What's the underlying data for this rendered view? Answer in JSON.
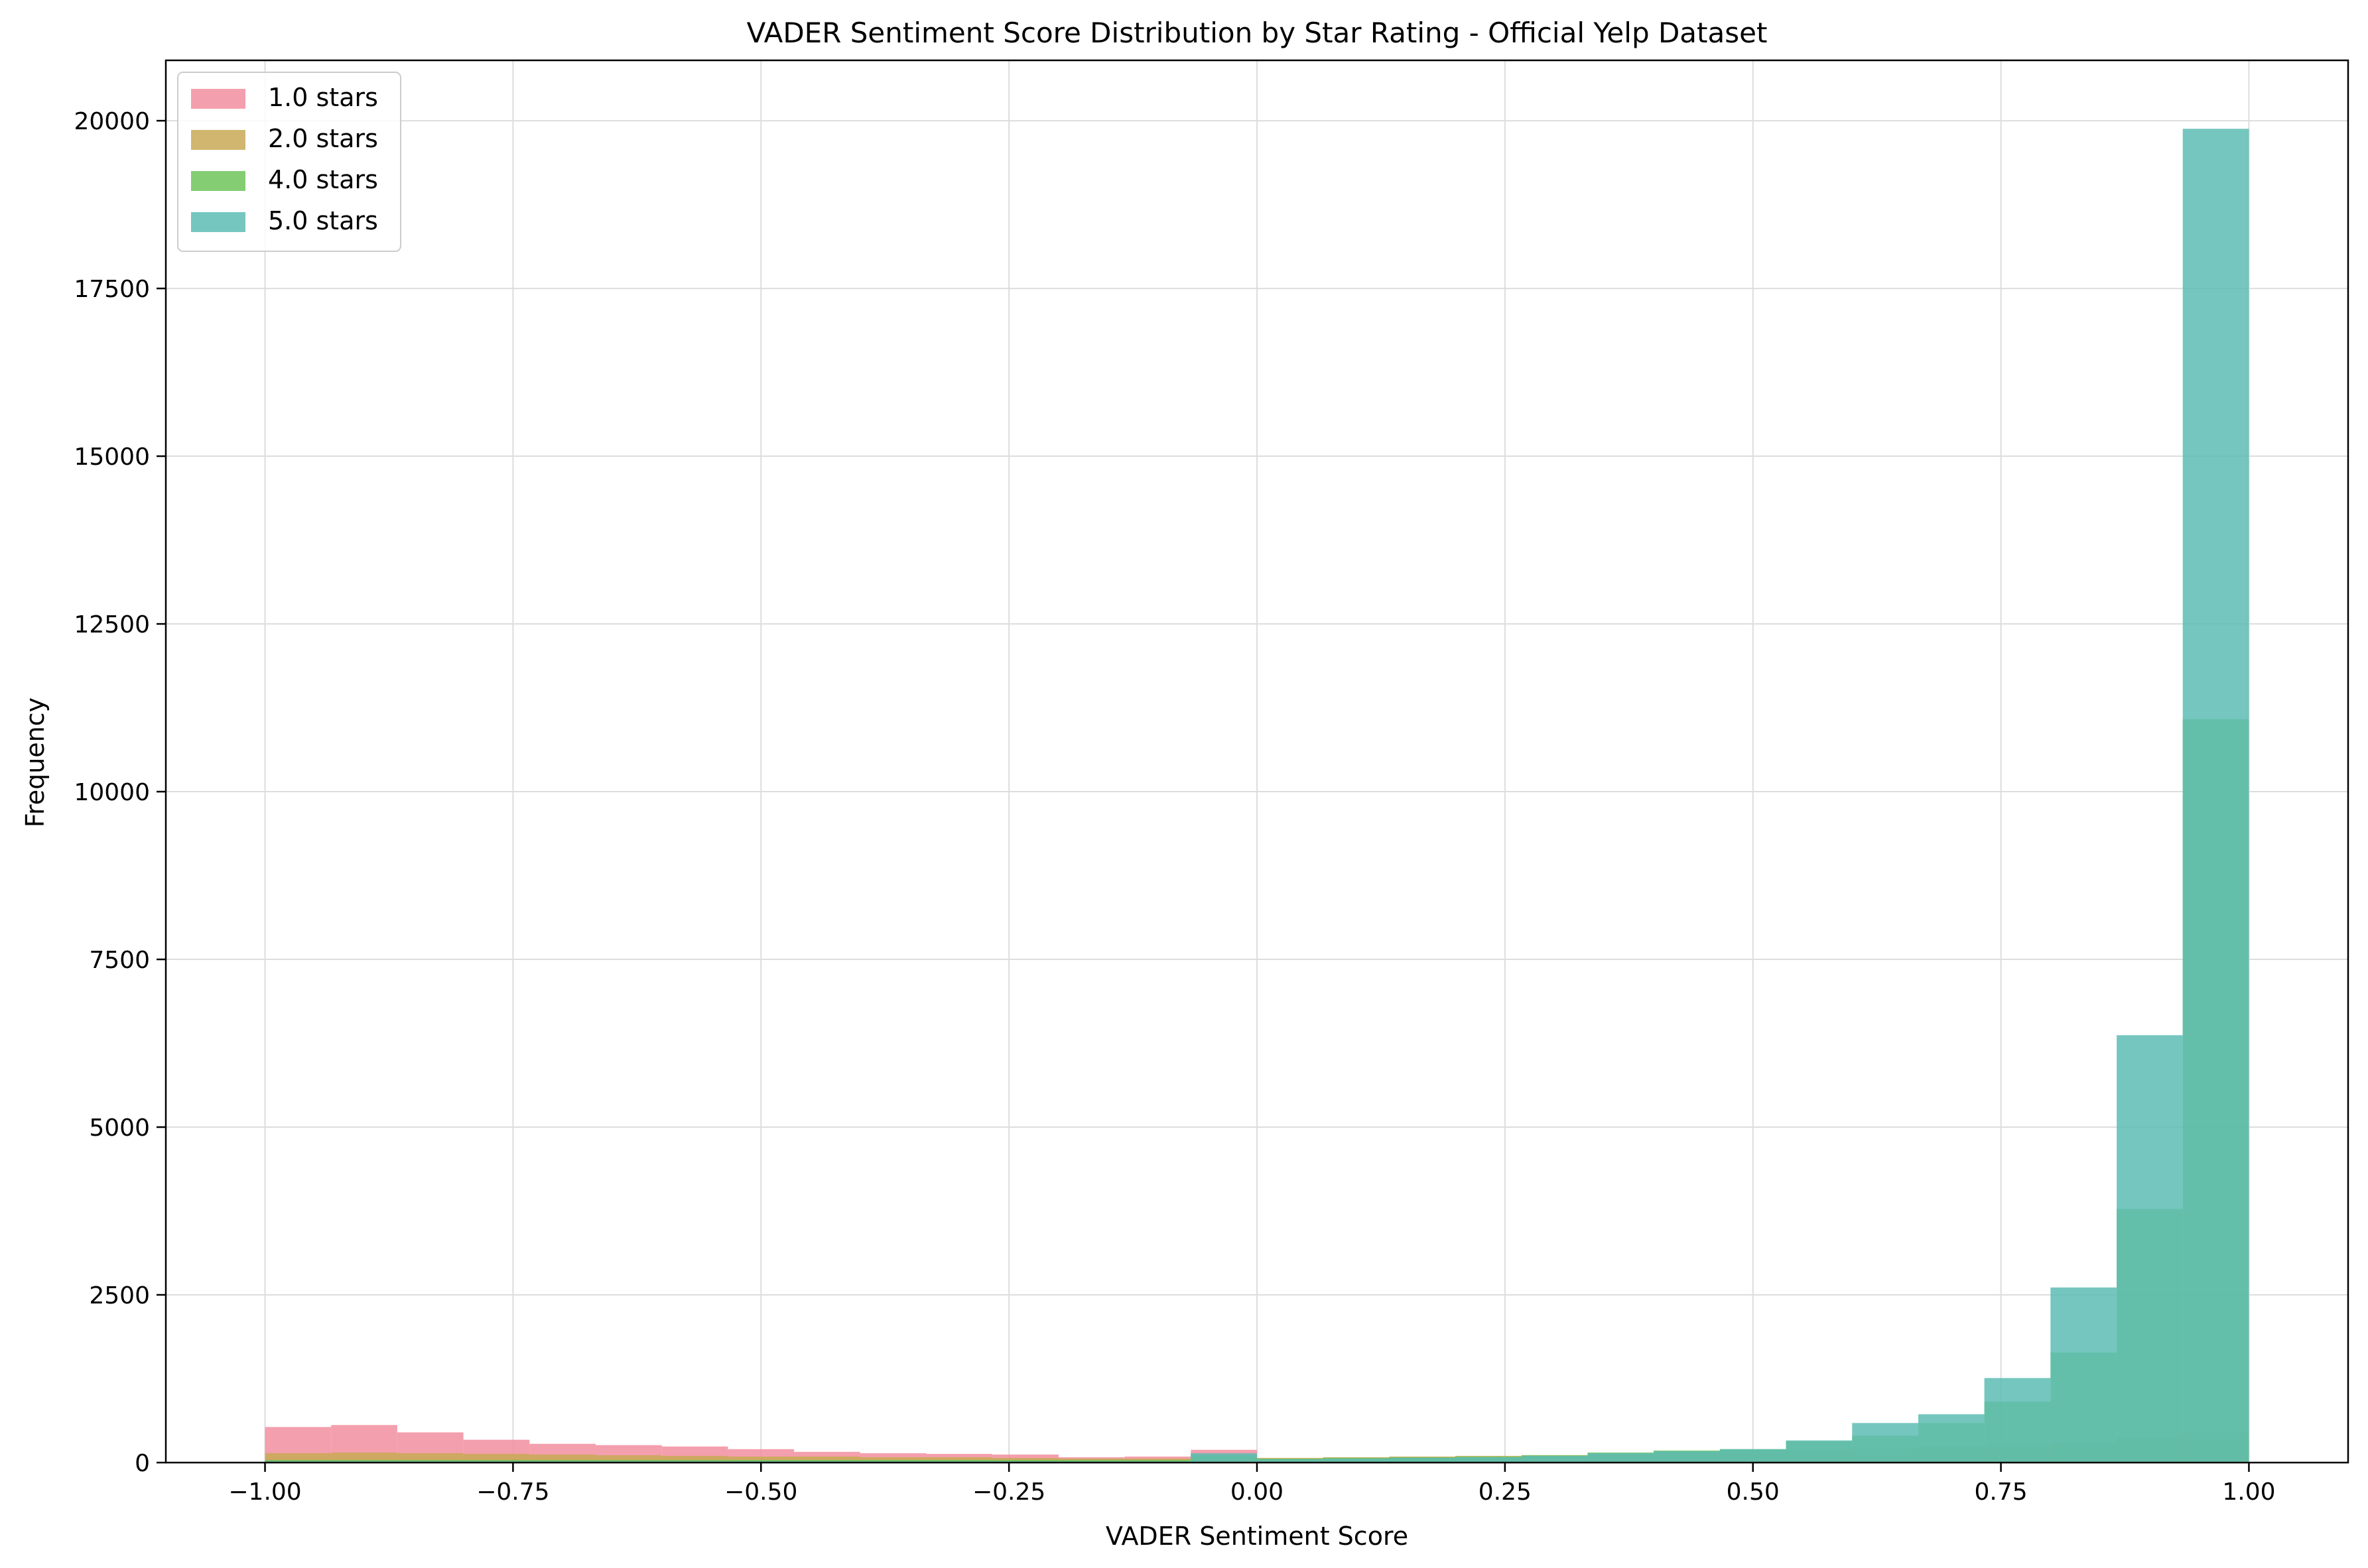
{
  "chart_data": {
    "type": "histogram",
    "title": "VADER Sentiment Score Distribution by Star Rating - Official Yelp Dataset",
    "xlabel": "VADER Sentiment Score",
    "ylabel": "Frequency",
    "xlim": [
      -1.1,
      1.1
    ],
    "ylim": [
      0,
      20900
    ],
    "grid": true,
    "legend_position": "upper-left",
    "x_ticks": [
      -1.0,
      -0.75,
      -0.5,
      -0.25,
      0.0,
      0.25,
      0.5,
      0.75,
      1.0
    ],
    "x_tick_labels": [
      "−1.00",
      "−0.75",
      "−0.50",
      "−0.25",
      "0.00",
      "0.25",
      "0.50",
      "0.75",
      "1.00"
    ],
    "y_ticks": [
      0,
      2500,
      5000,
      7500,
      10000,
      12500,
      15000,
      17500,
      20000
    ],
    "y_tick_labels": [
      "0",
      "2500",
      "5000",
      "7500",
      "10000",
      "12500",
      "15000",
      "17500",
      "20000"
    ],
    "bin_edges": [
      -1.0,
      -0.9333,
      -0.8667,
      -0.8,
      -0.7333,
      -0.6667,
      -0.6,
      -0.5333,
      -0.4667,
      -0.4,
      -0.3333,
      -0.2667,
      -0.2,
      -0.1333,
      -0.0667,
      0.0,
      0.0667,
      0.1333,
      0.2,
      0.2667,
      0.3333,
      0.4,
      0.4667,
      0.5333,
      0.6,
      0.6667,
      0.7333,
      0.8,
      0.8667,
      0.9333,
      1.0
    ],
    "series": [
      {
        "name": "1.0 stars",
        "color": "#f28e9f",
        "values": [
          530,
          560,
          450,
          340,
          280,
          260,
          240,
          200,
          160,
          140,
          130,
          120,
          80,
          90,
          190,
          60,
          60,
          60,
          70,
          80,
          100,
          110,
          130,
          150,
          170,
          190,
          230,
          260,
          300,
          350
        ]
      },
      {
        "name": "2.0 stars",
        "color": "#c8a955",
        "values": [
          140,
          150,
          140,
          130,
          120,
          110,
          100,
          90,
          90,
          80,
          80,
          70,
          60,
          60,
          80,
          70,
          80,
          90,
          100,
          110,
          130,
          150,
          170,
          190,
          210,
          240,
          270,
          300,
          380,
          450
        ]
      },
      {
        "name": "4.0 stars",
        "color": "#6fc45a",
        "values": [
          40,
          40,
          40,
          40,
          40,
          40,
          40,
          40,
          40,
          40,
          40,
          40,
          40,
          40,
          110,
          60,
          70,
          80,
          90,
          110,
          150,
          180,
          200,
          320,
          400,
          590,
          910,
          1640,
          3780,
          11080
        ]
      },
      {
        "name": "5.0 stars",
        "color": "#5dbcb4",
        "values": [
          20,
          20,
          20,
          20,
          20,
          20,
          20,
          20,
          20,
          20,
          20,
          20,
          20,
          20,
          140,
          50,
          60,
          70,
          80,
          100,
          140,
          170,
          200,
          330,
          590,
          720,
          1260,
          2610,
          6370,
          19880
        ]
      }
    ]
  }
}
